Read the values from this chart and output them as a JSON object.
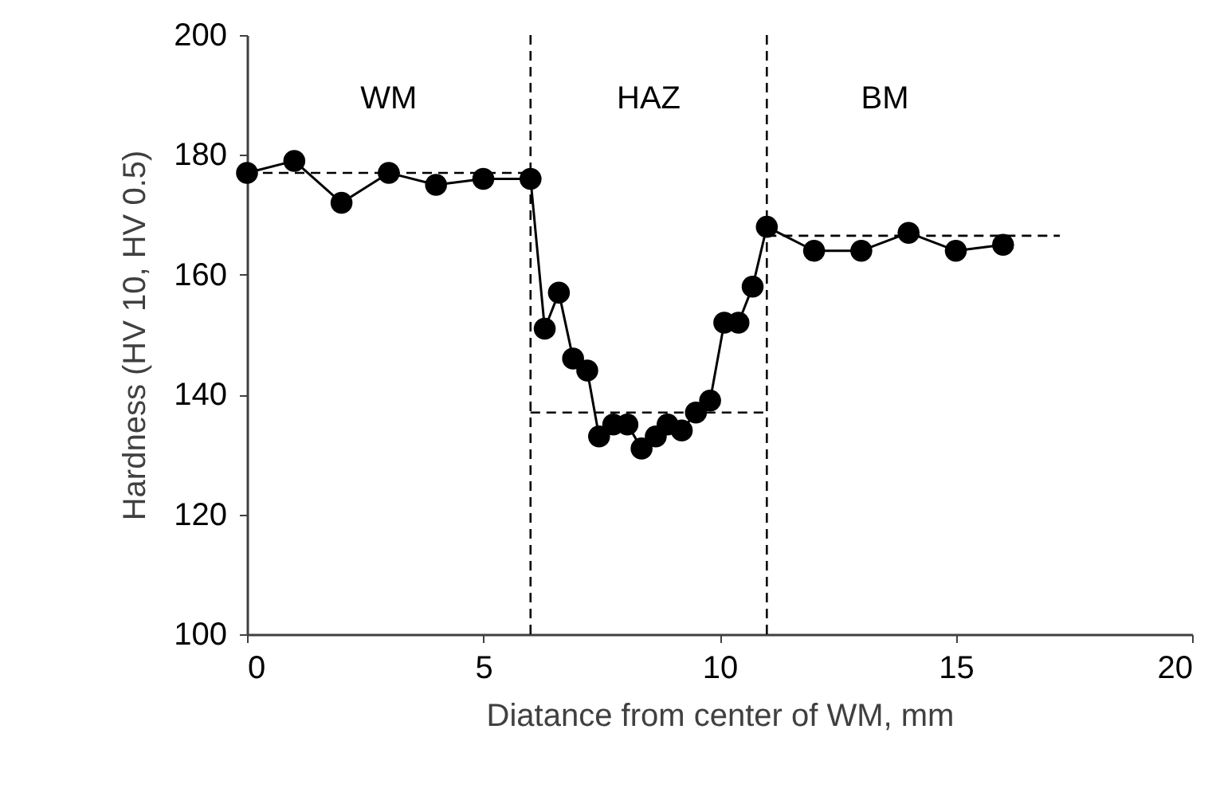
{
  "chart_data": {
    "type": "line",
    "xlabel": "Diatance from center of WM, mm",
    "ylabel": "Hardness (HV 10, HV 0.5)",
    "xlim": [
      0,
      20
    ],
    "xticks": [
      0,
      5,
      10,
      15,
      20
    ],
    "ylim": [
      100,
      200
    ],
    "yticks": [
      100,
      120,
      140,
      160,
      180,
      200
    ],
    "grid": false,
    "series": [
      {
        "color": "#000000",
        "marker": "circle",
        "line_style": "solid",
        "x": [
          0,
          1,
          2,
          3,
          4,
          5,
          6,
          6.3,
          6.6,
          6.9,
          7.2,
          7.45,
          7.75,
          8.05,
          8.35,
          8.65,
          8.9,
          9.2,
          9.5,
          9.8,
          10.1,
          10.4,
          10.7,
          11,
          12,
          13,
          14,
          15,
          16
        ],
        "values": [
          177,
          179,
          172,
          177,
          175,
          176,
          176,
          151,
          157,
          146,
          144,
          133,
          135,
          135,
          131,
          133,
          135,
          134,
          137,
          139,
          152,
          152,
          158,
          168,
          164,
          164,
          167,
          164,
          165
        ]
      },
      {
        "color": "#000000",
        "marker": "none",
        "line_style": "dashed",
        "x": [
          0,
          6
        ],
        "values": [
          177,
          177
        ]
      },
      {
        "color": "#000000",
        "marker": "none",
        "line_style": "dashed",
        "x": [
          6,
          11
        ],
        "values": [
          137,
          137
        ]
      },
      {
        "color": "#000000",
        "marker": "none",
        "line_style": "dashed",
        "x": [
          11,
          17.2
        ],
        "values": [
          166.5,
          166.5
        ]
      }
    ],
    "ref_lines": [
      {
        "axis": "x",
        "value": 6,
        "line_style": "dashed",
        "color": "#000000"
      },
      {
        "axis": "x",
        "value": 11,
        "line_style": "dashed",
        "color": "#000000"
      }
    ],
    "annotations": [
      "WM",
      "HAZ",
      "BM"
    ]
  }
}
